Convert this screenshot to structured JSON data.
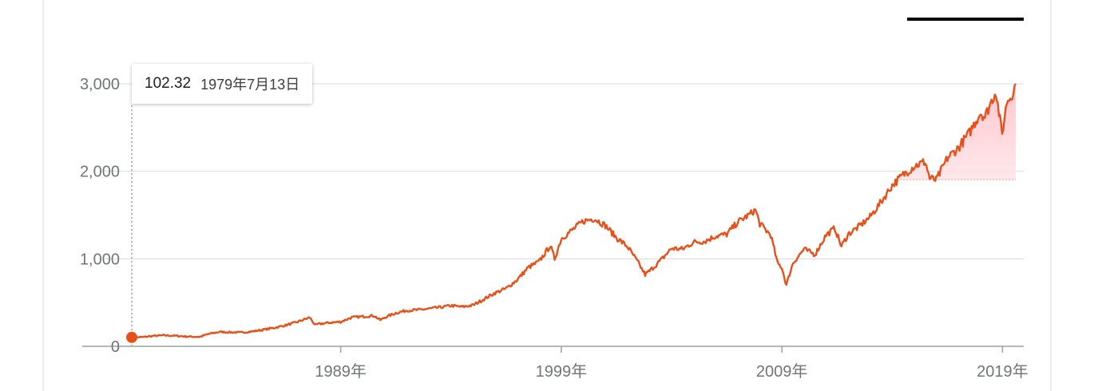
{
  "tooltip": {
    "value": "102.32",
    "date": "1979年7月13日"
  },
  "colors": {
    "line": "#e8501a",
    "fill": "#ffc9d0",
    "axis": "#9aa0a6",
    "grid": "#dadce0",
    "text": "#70757a",
    "range_indicator": "#000000"
  },
  "chart_data": {
    "type": "line",
    "title": "",
    "xlabel": "",
    "ylabel": "",
    "x_ticks": [
      {
        "x": 1989,
        "label": "1989年"
      },
      {
        "x": 1999,
        "label": "1999年"
      },
      {
        "x": 2009,
        "label": "2009年"
      },
      {
        "x": 2019,
        "label": "2019年"
      }
    ],
    "y_ticks": [
      {
        "y": 0,
        "label": "0"
      },
      {
        "y": 1000,
        "label": "1,000"
      },
      {
        "y": 2000,
        "label": "2,000"
      },
      {
        "y": 3000,
        "label": "3,000"
      }
    ],
    "xlim": [
      1979.53,
      2019.6
    ],
    "ylim": [
      0,
      3000
    ],
    "grid": true,
    "reference_line": 1905,
    "highlighted_point": {
      "x": 1979.53,
      "y": 102.32
    },
    "series": [
      {
        "values": [
          [
            1979.53,
            102.3
          ],
          [
            1980.0,
            105
          ],
          [
            1980.5,
            118
          ],
          [
            1981.0,
            125
          ],
          [
            1981.5,
            120
          ],
          [
            1982.0,
            112
          ],
          [
            1982.6,
            108
          ],
          [
            1983.0,
            140
          ],
          [
            1983.5,
            165
          ],
          [
            1984.0,
            160
          ],
          [
            1984.5,
            158
          ],
          [
            1985.0,
            170
          ],
          [
            1985.5,
            190
          ],
          [
            1986.0,
            212
          ],
          [
            1986.5,
            240
          ],
          [
            1987.0,
            275
          ],
          [
            1987.6,
            330
          ],
          [
            1987.85,
            240
          ],
          [
            1988.0,
            255
          ],
          [
            1988.5,
            270
          ],
          [
            1989.0,
            280
          ],
          [
            1989.5,
            330
          ],
          [
            1990.0,
            340
          ],
          [
            1990.5,
            350
          ],
          [
            1990.8,
            300
          ],
          [
            1991.0,
            330
          ],
          [
            1991.5,
            380
          ],
          [
            1992.0,
            410
          ],
          [
            1992.5,
            415
          ],
          [
            1993.0,
            430
          ],
          [
            1993.5,
            445
          ],
          [
            1994.0,
            465
          ],
          [
            1994.5,
            450
          ],
          [
            1995.0,
            470
          ],
          [
            1995.5,
            540
          ],
          [
            1996.0,
            610
          ],
          [
            1996.5,
            660
          ],
          [
            1997.0,
            760
          ],
          [
            1997.5,
            900
          ],
          [
            1998.0,
            970
          ],
          [
            1998.5,
            1150
          ],
          [
            1998.7,
            1000
          ],
          [
            1999.0,
            1230
          ],
          [
            1999.5,
            1330
          ],
          [
            2000.0,
            1430
          ],
          [
            2000.5,
            1460
          ],
          [
            2001.0,
            1380
          ],
          [
            2001.5,
            1240
          ],
          [
            2002.0,
            1140
          ],
          [
            2002.5,
            950
          ],
          [
            2002.8,
            820
          ],
          [
            2003.0,
            860
          ],
          [
            2003.5,
            980
          ],
          [
            2004.0,
            1120
          ],
          [
            2004.5,
            1110
          ],
          [
            2005.0,
            1190
          ],
          [
            2005.5,
            1200
          ],
          [
            2006.0,
            1260
          ],
          [
            2006.5,
            1280
          ],
          [
            2007.0,
            1420
          ],
          [
            2007.5,
            1500
          ],
          [
            2007.8,
            1560
          ],
          [
            2008.0,
            1400
          ],
          [
            2008.5,
            1270
          ],
          [
            2008.8,
            950
          ],
          [
            2009.0,
            900
          ],
          [
            2009.2,
            700
          ],
          [
            2009.5,
            950
          ],
          [
            2010.0,
            1110
          ],
          [
            2010.5,
            1050
          ],
          [
            2011.0,
            1270
          ],
          [
            2011.4,
            1350
          ],
          [
            2011.7,
            1140
          ],
          [
            2012.0,
            1280
          ],
          [
            2012.5,
            1370
          ],
          [
            2013.0,
            1480
          ],
          [
            2013.5,
            1650
          ],
          [
            2014.0,
            1840
          ],
          [
            2014.5,
            1960
          ],
          [
            2015.0,
            2060
          ],
          [
            2015.5,
            2110
          ],
          [
            2015.7,
            1920
          ],
          [
            2016.0,
            1900
          ],
          [
            2016.5,
            2150
          ],
          [
            2017.0,
            2270
          ],
          [
            2017.5,
            2440
          ],
          [
            2018.0,
            2670
          ],
          [
            2018.2,
            2620
          ],
          [
            2018.7,
            2920
          ],
          [
            2018.98,
            2420
          ],
          [
            2019.2,
            2800
          ],
          [
            2019.4,
            2860
          ],
          [
            2019.6,
            3000
          ]
        ]
      }
    ]
  }
}
